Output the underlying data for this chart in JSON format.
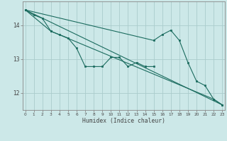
{
  "xlabel": "Humidex (Indice chaleur)",
  "x": [
    0,
    1,
    2,
    3,
    4,
    5,
    6,
    7,
    8,
    9,
    10,
    11,
    12,
    13,
    14,
    15,
    16,
    17,
    18,
    19,
    20,
    21,
    22,
    23
  ],
  "line1_y": [
    14.45,
    14.3,
    14.2,
    13.82,
    13.72,
    13.62,
    13.32,
    12.78,
    12.78,
    12.78,
    13.05,
    13.05,
    12.78,
    12.9,
    12.78,
    12.78,
    null,
    null,
    null,
    null,
    null,
    null,
    null,
    null
  ],
  "line2_y": [
    14.45,
    null,
    null,
    null,
    null,
    null,
    null,
    null,
    null,
    null,
    null,
    null,
    null,
    null,
    null,
    13.55,
    13.72,
    13.85,
    13.55,
    12.9,
    12.35,
    12.22,
    11.82,
    11.65
  ],
  "line3_y": [
    14.45,
    null,
    null,
    13.82,
    null,
    null,
    null,
    null,
    null,
    null,
    null,
    null,
    null,
    null,
    null,
    null,
    null,
    null,
    null,
    null,
    null,
    null,
    11.82,
    11.65
  ],
  "trend_x": [
    0,
    23
  ],
  "trend_y": [
    14.45,
    11.65
  ],
  "bg_color": "#cce8e8",
  "grid_color": "#aacccc",
  "line_color": "#1a6b5e",
  "tick_color": "#444444",
  "ylim": [
    11.5,
    14.7
  ],
  "yticks": [
    12,
    13,
    14
  ],
  "xlim": [
    -0.3,
    23.3
  ],
  "figsize": [
    3.2,
    2.0
  ],
  "dpi": 100
}
